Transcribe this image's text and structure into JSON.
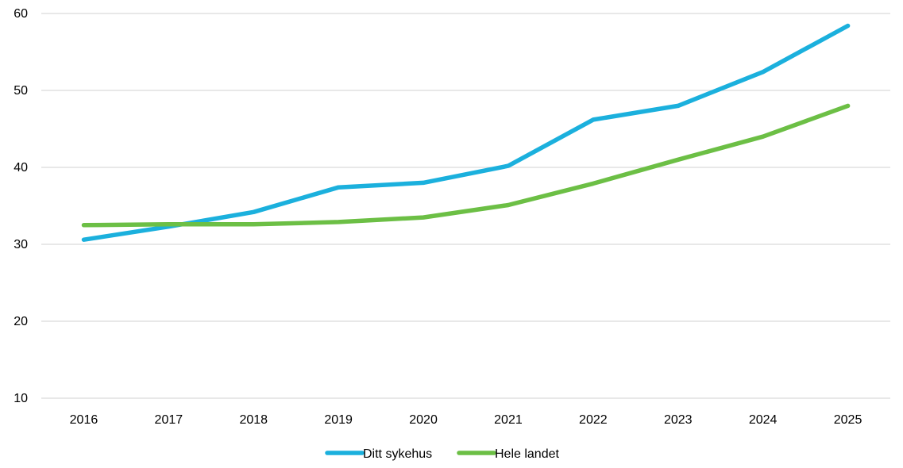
{
  "chart_data": {
    "type": "line",
    "title": "",
    "xlabel": "",
    "ylabel": "",
    "categories": [
      "2016",
      "2017",
      "2018",
      "2019",
      "2020",
      "2021",
      "2022",
      "2023",
      "2024",
      "2025"
    ],
    "ylim": [
      10,
      60
    ],
    "yticks": [
      10,
      20,
      30,
      40,
      50,
      60
    ],
    "grid": "horizontal",
    "legend_position": "bottom",
    "series": [
      {
        "name": "Ditt sykehus",
        "color": "#1BB0DD",
        "values": [
          30.6,
          32.3,
          34.2,
          37.4,
          38.0,
          40.2,
          46.2,
          48.0,
          52.4,
          58.4
        ]
      },
      {
        "name": "Hele landet",
        "color": "#6CBF45",
        "values": [
          32.5,
          32.6,
          32.6,
          32.9,
          33.5,
          35.1,
          37.9,
          41.0,
          44.0,
          48.0
        ]
      }
    ]
  }
}
